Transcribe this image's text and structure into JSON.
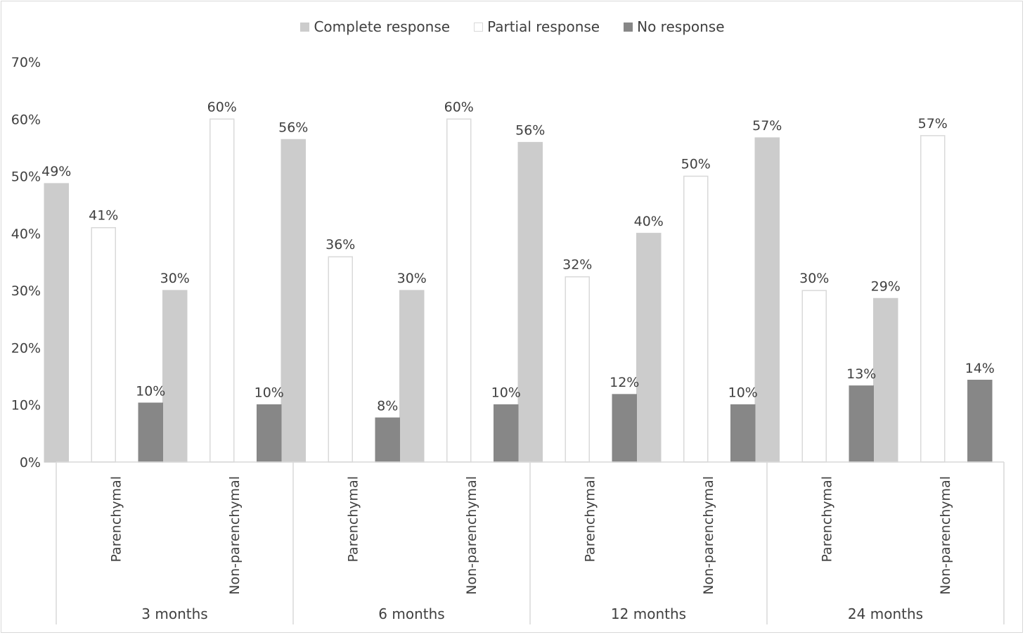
{
  "chart_data": {
    "type": "bar",
    "title": "",
    "xlabel": "",
    "ylabel": "",
    "ylim": [
      0,
      70
    ],
    "y_ticks": [
      0,
      10,
      20,
      30,
      40,
      50,
      60,
      70
    ],
    "y_tick_labels": [
      "0%",
      "10%",
      "20%",
      "30%",
      "40%",
      "50%",
      "60%",
      "70%"
    ],
    "grid": false,
    "legend_position": "top",
    "groups": [
      {
        "label": "3 months",
        "categories": [
          "Parenchymal",
          "Non-parenchymal"
        ]
      },
      {
        "label": "6 months",
        "categories": [
          "Parenchymal",
          "Non-parenchymal"
        ]
      },
      {
        "label": "12 months",
        "categories": [
          "Parenchymal",
          "Non-parenchymal"
        ]
      },
      {
        "label": "24 months",
        "categories": [
          "Parenchymal",
          "Non-parenchymal"
        ]
      }
    ],
    "series": [
      {
        "name": "Complete response",
        "color": "#cccccc",
        "border": "#cccccc",
        "values": [
          48.7,
          30,
          56.4,
          30,
          55.9,
          40,
          56.7,
          28.6
        ],
        "labels": [
          "49%",
          "30%",
          "56%",
          "30%",
          "56%",
          "40%",
          "57%",
          "29%"
        ]
      },
      {
        "name": "Partial response",
        "color": "#ffffff",
        "border": "#d9d9d9",
        "values": [
          41,
          60,
          35.9,
          60,
          32.4,
          50,
          30,
          57.1
        ],
        "labels": [
          "41%",
          "60%",
          "36%",
          "60%",
          "32%",
          "50%",
          "30%",
          "57%"
        ]
      },
      {
        "name": "No response",
        "color": "#878787",
        "border": "#878787",
        "values": [
          10.3,
          10,
          7.7,
          10,
          11.8,
          10,
          13.3,
          14.3
        ],
        "labels": [
          "10%",
          "10%",
          "8%",
          "10%",
          "12%",
          "10%",
          "13%",
          "14%"
        ]
      }
    ]
  }
}
